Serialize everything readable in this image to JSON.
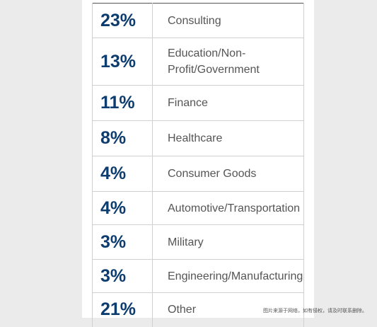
{
  "rows": [
    {
      "percent": "23%",
      "label": "Consulting"
    },
    {
      "percent": "13%",
      "label": "Education/Non-Profit/Government"
    },
    {
      "percent": "11%",
      "label": "Finance"
    },
    {
      "percent": "8%",
      "label": "Healthcare"
    },
    {
      "percent": "4%",
      "label": "Consumer Goods"
    },
    {
      "percent": "4%",
      "label": "Automotive/Transportation"
    },
    {
      "percent": "3%",
      "label": "Military"
    },
    {
      "percent": "3%",
      "label": "Engineering/Manufacturing"
    },
    {
      "percent": "21%",
      "label": "Other"
    }
  ],
  "watermark": "图片来源于网络，如有侵权，请及时联系删除。",
  "colors": {
    "percent_text": "#0d3c6e",
    "label_text": "#555555",
    "background": "#ebebeb"
  }
}
